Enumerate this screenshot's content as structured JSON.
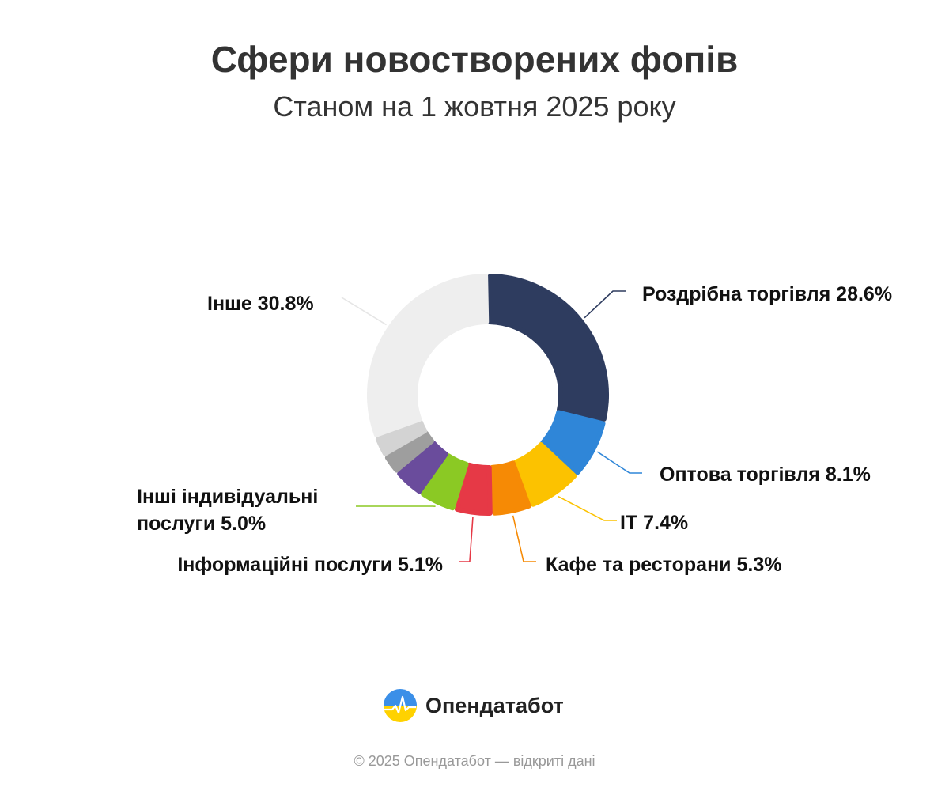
{
  "title": "Сфери новостворених фопів",
  "subtitle": "Станом на 1 жовтня 2025 року",
  "chart_data": {
    "type": "pie",
    "title": "Сфери новостворених фопів",
    "subtitle": "Станом на 1 жовтня 2025 року",
    "unit": "%",
    "slices": [
      {
        "name": "Роздрібна торгівля",
        "value": 28.6,
        "label": "Роздрібна торгівля 28.6%",
        "color": "#2e3c5f",
        "labeled": true
      },
      {
        "name": "Оптова торгівля",
        "value": 8.1,
        "label": "Оптова торгівля 8.1%",
        "color": "#2f86d8",
        "labeled": true
      },
      {
        "name": "IT",
        "value": 7.4,
        "label": "IT 7.4%",
        "color": "#fcc200",
        "labeled": true
      },
      {
        "name": "Кафе та ресторани",
        "value": 5.3,
        "label": "Кафе та ресторани 5.3%",
        "color": "#f68a05",
        "labeled": true
      },
      {
        "name": "Інформаційні послуги",
        "value": 5.1,
        "label": "Інформаційні послуги 5.1%",
        "color": "#e63946",
        "labeled": true
      },
      {
        "name": "Інші індивідуальні послуги",
        "value": 5.0,
        "label_lines": [
          "Інші індивідуальні",
          "послуги 5.0%"
        ],
        "color": "#8bc924",
        "labeled": true
      },
      {
        "name": "",
        "value": 4.2,
        "color": "#6a4c9c",
        "labeled": false
      },
      {
        "name": "",
        "value": 2.7,
        "color": "#9e9e9e",
        "labeled": false
      },
      {
        "name": "",
        "value": 2.8,
        "color": "#d3d3d3",
        "labeled": false
      },
      {
        "name": "Інше",
        "value": 30.8,
        "label": "Інше 30.8%",
        "color": "#eeeeee",
        "labeled": true
      }
    ]
  },
  "brand": {
    "name": "Опендатабот",
    "icon": "opendatabot-logo-icon"
  },
  "footer": "© 2025 Опендатабот — відкриті дані"
}
